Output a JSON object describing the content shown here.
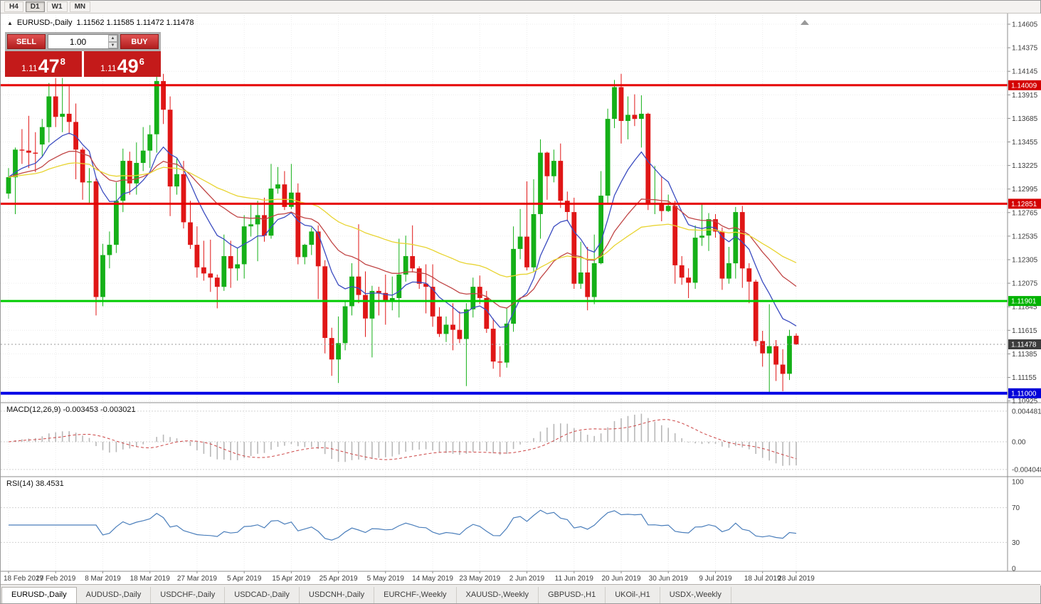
{
  "toolbar": {
    "timeframes": [
      {
        "label": "H4",
        "active": false
      },
      {
        "label": "D1",
        "active": true
      },
      {
        "label": "W1",
        "active": false
      },
      {
        "label": "MN",
        "active": false
      }
    ]
  },
  "chart": {
    "collapse_icon": "▲",
    "title": "EURUSD-,Daily",
    "ohlc_text": "1.11562 1.11585 1.11472 1.11478"
  },
  "trade_panel": {
    "sell_label": "SELL",
    "buy_label": "BUY",
    "volume": "1.00",
    "spin_up_icon": "▲",
    "spin_down_icon": "▼",
    "sell_price": {
      "prefix": "1.11",
      "big": "47",
      "sup": "8"
    },
    "buy_price": {
      "prefix": "1.11",
      "big": "49",
      "sup": "6"
    }
  },
  "price_axis": {
    "labels": [
      "1.14605",
      "1.14375",
      "1.14145",
      "1.13915",
      "1.13685",
      "1.13455",
      "1.13225",
      "1.12995",
      "1.12765",
      "1.12535",
      "1.12305",
      "1.12075",
      "1.11845",
      "1.11615",
      "1.11385",
      "1.11155",
      "1.10925"
    ]
  },
  "x_axis": {
    "labels": [
      "18 Feb 2019",
      "27 Feb 2019",
      "8 Mar 2019",
      "18 Mar 2019",
      "27 Mar 2019",
      "5 Apr 2019",
      "15 Apr 2019",
      "25 Apr 2019",
      "5 May 2019",
      "14 May 2019",
      "23 May 2019",
      "2 Jun 2019",
      "11 Jun 2019",
      "20 Jun 2019",
      "30 Jun 2019",
      "9 Jul 2019",
      "18 Jul 2019",
      "28 Jul 2019"
    ]
  },
  "hlines": [
    {
      "price": 1.14009,
      "label": "1.14009",
      "color": "#e60000",
      "label_bg": "#d40000",
      "width": 3
    },
    {
      "price": 1.12851,
      "label": "1.12851",
      "color": "#e60000",
      "label_bg": "#d40000",
      "width": 3
    },
    {
      "price": 1.11901,
      "label": "1.11901",
      "color": "#00cc00",
      "label_bg": "#00b300",
      "width": 3
    },
    {
      "price": 1.11,
      "label": "1.11000",
      "color": "#0000e6",
      "label_bg": "#0000d9",
      "width": 4
    }
  ],
  "current_price": {
    "value": 1.11478,
    "label": "1.11478",
    "label_bg": "#3c3c3c"
  },
  "macd_panel": {
    "label": "MACD(12,26,9) -0.003453 -0.003021",
    "axis_labels": [
      "0.004481",
      "0.00",
      "-0.004048"
    ]
  },
  "rsi_panel": {
    "label": "RSI(14) 38.4531",
    "axis_labels": [
      "100",
      "70",
      "30",
      "0"
    ],
    "levels": [
      70,
      30
    ]
  },
  "tabs": {
    "items": [
      "EURUSD-,Daily",
      "AUDUSD-,Daily",
      "USDCHF-,Daily",
      "USDCAD-,Daily",
      "USDCNH-,Daily",
      "EURCHF-,Weekly",
      "XAUUSD-,Weekly",
      "GBPUSD-,H1",
      "UKOil-,H1",
      "USDX-,Weekly"
    ],
    "active_index": 0
  },
  "chart_data": {
    "type": "candlestick",
    "symbol": "EURUSD-",
    "timeframe": "Daily",
    "title": "EURUSD-,Daily",
    "ylim": [
      1.10925,
      1.14605
    ],
    "bull_color": "#15b018",
    "bear_color": "#e01616",
    "moving_averages": [
      {
        "period": 10,
        "color": "#3b4cc0",
        "type": "ema"
      },
      {
        "period": 24,
        "color": "#c04545",
        "type": "ema"
      },
      {
        "period": 52,
        "color": "#e8d431",
        "type": "ema"
      }
    ],
    "macd": {
      "fast": 12,
      "slow": 26,
      "signal": 9,
      "histogram_color": "#b8b8b8",
      "signal_color": "#cc4444",
      "current": -0.003453,
      "current_signal": -0.003021
    },
    "rsi": {
      "period": 14,
      "color": "#4a7ebb",
      "current": 38.4531
    },
    "ohlc": [
      [
        1.1295,
        1.132,
        1.129,
        1.1311
      ],
      [
        1.1311,
        1.134,
        1.1275,
        1.1338
      ],
      [
        1.1338,
        1.1358,
        1.1324,
        1.1337
      ],
      [
        1.1337,
        1.1371,
        1.132,
        1.1335
      ],
      [
        1.1335,
        1.1355,
        1.1316,
        1.1334
      ],
      [
        1.1343,
        1.1368,
        1.1331,
        1.136
      ],
      [
        1.136,
        1.1403,
        1.1345,
        1.139
      ],
      [
        1.139,
        1.1408,
        1.136,
        1.137
      ],
      [
        1.137,
        1.1408,
        1.1355,
        1.1373
      ],
      [
        1.1373,
        1.14,
        1.1353,
        1.1365
      ],
      [
        1.1365,
        1.1383,
        1.1309,
        1.1338
      ],
      [
        1.1338,
        1.134,
        1.1289,
        1.1306
      ],
      [
        1.1306,
        1.132,
        1.1285,
        1.1307
      ],
      [
        1.1307,
        1.131,
        1.1176,
        1.1194
      ],
      [
        1.1194,
        1.1246,
        1.1185,
        1.1235
      ],
      [
        1.1235,
        1.1258,
        1.1222,
        1.1245
      ],
      [
        1.1245,
        1.1306,
        1.1237,
        1.1288
      ],
      [
        1.1288,
        1.1339,
        1.1277,
        1.1327
      ],
      [
        1.1327,
        1.1336,
        1.1294,
        1.1305
      ],
      [
        1.1305,
        1.1345,
        1.1294,
        1.1325
      ],
      [
        1.1325,
        1.136,
        1.1317,
        1.1337
      ],
      [
        1.1337,
        1.1362,
        1.132,
        1.1353
      ],
      [
        1.1353,
        1.1415,
        1.1335,
        1.1405
      ],
      [
        1.1405,
        1.1412,
        1.1363,
        1.1377
      ],
      [
        1.1377,
        1.139,
        1.1273,
        1.1302
      ],
      [
        1.1302,
        1.133,
        1.1294,
        1.1314
      ],
      [
        1.1314,
        1.1327,
        1.1261,
        1.1267
      ],
      [
        1.1267,
        1.1288,
        1.1241,
        1.1245
      ],
      [
        1.1245,
        1.1263,
        1.1213,
        1.1223
      ],
      [
        1.1223,
        1.1249,
        1.121,
        1.1217
      ],
      [
        1.1217,
        1.125,
        1.1199,
        1.1213
      ],
      [
        1.1213,
        1.1216,
        1.1183,
        1.1204
      ],
      [
        1.1204,
        1.1255,
        1.12,
        1.1234
      ],
      [
        1.1234,
        1.1249,
        1.1203,
        1.1222
      ],
      [
        1.1222,
        1.1242,
        1.121,
        1.1226
      ],
      [
        1.1226,
        1.1274,
        1.1212,
        1.1263
      ],
      [
        1.1263,
        1.1284,
        1.1253,
        1.1265
      ],
      [
        1.1265,
        1.1288,
        1.1229,
        1.1274
      ],
      [
        1.1274,
        1.1291,
        1.1248,
        1.1254
      ],
      [
        1.1254,
        1.1324,
        1.1251,
        1.13
      ],
      [
        1.13,
        1.1321,
        1.1295,
        1.1304
      ],
      [
        1.1304,
        1.1317,
        1.1279,
        1.1282
      ],
      [
        1.1282,
        1.1324,
        1.128,
        1.1296
      ],
      [
        1.1296,
        1.1305,
        1.1226,
        1.1233
      ],
      [
        1.1233,
        1.1246,
        1.1226,
        1.1245
      ],
      [
        1.1245,
        1.1262,
        1.1235,
        1.1258
      ],
      [
        1.1258,
        1.1264,
        1.1192,
        1.1224
      ],
      [
        1.1224,
        1.123,
        1.1139,
        1.1154
      ],
      [
        1.1154,
        1.1164,
        1.1117,
        1.1133
      ],
      [
        1.1133,
        1.1175,
        1.111,
        1.1149
      ],
      [
        1.1149,
        1.119,
        1.1142,
        1.1185
      ],
      [
        1.1185,
        1.1227,
        1.1176,
        1.1214
      ],
      [
        1.1214,
        1.1265,
        1.1188,
        1.1196
      ],
      [
        1.1196,
        1.1219,
        1.1155,
        1.1173
      ],
      [
        1.1173,
        1.1205,
        1.1135,
        1.12
      ],
      [
        1.12,
        1.1204,
        1.1176,
        1.1198
      ],
      [
        1.1198,
        1.1216,
        1.1167,
        1.119
      ],
      [
        1.119,
        1.1214,
        1.1181,
        1.1193
      ],
      [
        1.1193,
        1.1251,
        1.1174,
        1.1216
      ],
      [
        1.1216,
        1.1254,
        1.1209,
        1.1234
      ],
      [
        1.1234,
        1.1264,
        1.1218,
        1.1222
      ],
      [
        1.1222,
        1.1224,
        1.1202,
        1.1207
      ],
      [
        1.1207,
        1.1226,
        1.1178,
        1.1204
      ],
      [
        1.1204,
        1.1226,
        1.1165,
        1.1175
      ],
      [
        1.1175,
        1.1184,
        1.1155,
        1.1158
      ],
      [
        1.1158,
        1.1175,
        1.115,
        1.1167
      ],
      [
        1.1167,
        1.1188,
        1.1142,
        1.1162
      ],
      [
        1.1162,
        1.118,
        1.1149,
        1.1153
      ],
      [
        1.1153,
        1.1188,
        1.1107,
        1.1182
      ],
      [
        1.1182,
        1.1213,
        1.1174,
        1.1204
      ],
      [
        1.1204,
        1.1215,
        1.1187,
        1.1193
      ],
      [
        1.1193,
        1.12,
        1.1159,
        1.1163
      ],
      [
        1.1163,
        1.1173,
        1.1124,
        1.1131
      ],
      [
        1.1131,
        1.1146,
        1.1116,
        1.113
      ],
      [
        1.113,
        1.1183,
        1.1125,
        1.1168
      ],
      [
        1.1168,
        1.1263,
        1.116,
        1.1241
      ],
      [
        1.1241,
        1.128,
        1.1231,
        1.1253
      ],
      [
        1.1253,
        1.1307,
        1.122,
        1.1223
      ],
      [
        1.1223,
        1.1309,
        1.1219,
        1.1275
      ],
      [
        1.1275,
        1.1348,
        1.1251,
        1.1335
      ],
      [
        1.1335,
        1.1336,
        1.1289,
        1.1312
      ],
      [
        1.1312,
        1.1338,
        1.1306,
        1.1327
      ],
      [
        1.1327,
        1.1344,
        1.1281,
        1.1288
      ],
      [
        1.1288,
        1.1297,
        1.1268,
        1.1277
      ],
      [
        1.1277,
        1.1291,
        1.1202,
        1.1207
      ],
      [
        1.1207,
        1.1248,
        1.1202,
        1.1218
      ],
      [
        1.1218,
        1.1243,
        1.1181,
        1.1194
      ],
      [
        1.1194,
        1.1255,
        1.1187,
        1.1227
      ],
      [
        1.1227,
        1.1317,
        1.1226,
        1.1293
      ],
      [
        1.1293,
        1.1378,
        1.1285,
        1.1368
      ],
      [
        1.1368,
        1.1406,
        1.1359,
        1.1399
      ],
      [
        1.1399,
        1.1412,
        1.1344,
        1.1366
      ],
      [
        1.1366,
        1.139,
        1.1348,
        1.1372
      ],
      [
        1.1372,
        1.1392,
        1.1361,
        1.1368
      ],
      [
        1.1368,
        1.1391,
        1.134,
        1.1373
      ],
      [
        1.1373,
        1.1374,
        1.1279,
        1.1285
      ],
      [
        1.1285,
        1.1322,
        1.1275,
        1.1286
      ],
      [
        1.1286,
        1.1312,
        1.1268,
        1.1278
      ],
      [
        1.1278,
        1.1294,
        1.1277,
        1.1283
      ],
      [
        1.1283,
        1.1288,
        1.1207,
        1.1225
      ],
      [
        1.1225,
        1.1234,
        1.1206,
        1.1213
      ],
      [
        1.1213,
        1.1222,
        1.1193,
        1.1208
      ],
      [
        1.1208,
        1.1264,
        1.1202,
        1.1252
      ],
      [
        1.1252,
        1.1286,
        1.1244,
        1.1254
      ],
      [
        1.1254,
        1.1276,
        1.1239,
        1.127
      ],
      [
        1.127,
        1.1275,
        1.1252,
        1.1258
      ],
      [
        1.1258,
        1.1262,
        1.1201,
        1.1212
      ],
      [
        1.1212,
        1.1243,
        1.1207,
        1.1227
      ],
      [
        1.1227,
        1.1282,
        1.1212,
        1.1277
      ],
      [
        1.1277,
        1.1283,
        1.1203,
        1.1222
      ],
      [
        1.1222,
        1.1227,
        1.1188,
        1.1209
      ],
      [
        1.1209,
        1.1211,
        1.1146,
        1.1151
      ],
      [
        1.1151,
        1.1161,
        1.1126,
        1.1139
      ],
      [
        1.1139,
        1.1187,
        1.1101,
        1.1146
      ],
      [
        1.1146,
        1.1152,
        1.1112,
        1.1128
      ],
      [
        1.1128,
        1.1143,
        1.1102,
        1.1119
      ],
      [
        1.1119,
        1.1162,
        1.1113,
        1.1156
      ],
      [
        1.11562,
        1.11585,
        1.11472,
        1.11478
      ]
    ]
  }
}
